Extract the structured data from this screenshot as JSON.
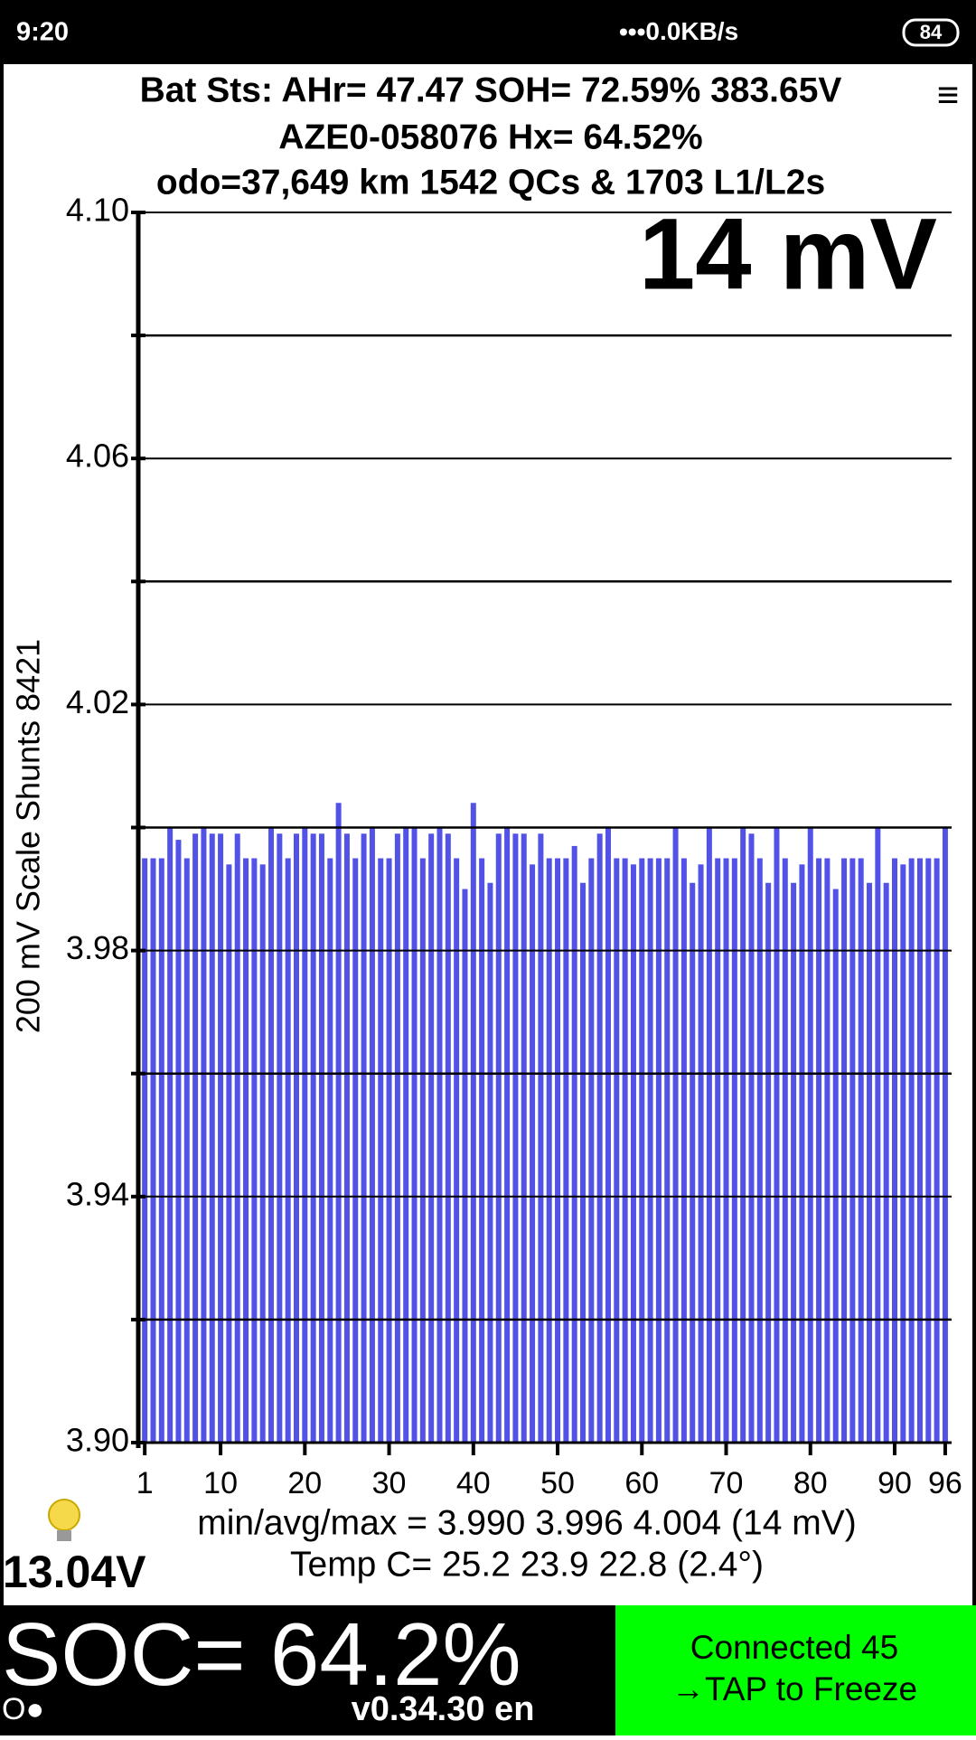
{
  "status_bar": {
    "time": "9:20",
    "network": "0.0KB/s",
    "battery": "84"
  },
  "header": {
    "line1": "Bat Sts: AHr= 47.47 SOH= 72.59% 383.65V",
    "line2": "AZE0-058076   Hx= 64.52%",
    "line3": "odo=37,649 km  1542 QCs & 1703 L1/L2s",
    "menu": "≡"
  },
  "chart_data": {
    "type": "bar",
    "annotation": "14 mV",
    "ylabel": "200 mV Scale   Shunts 8421",
    "color": "#5252e6",
    "x": [
      1,
      2,
      3,
      4,
      5,
      6,
      7,
      8,
      9,
      10,
      11,
      12,
      13,
      14,
      15,
      16,
      17,
      18,
      19,
      20,
      21,
      22,
      23,
      24,
      25,
      26,
      27,
      28,
      29,
      30,
      31,
      32,
      33,
      34,
      35,
      36,
      37,
      38,
      39,
      40,
      41,
      42,
      43,
      44,
      45,
      46,
      47,
      48,
      49,
      50,
      51,
      52,
      53,
      54,
      55,
      56,
      57,
      58,
      59,
      60,
      61,
      62,
      63,
      64,
      65,
      66,
      67,
      68,
      69,
      70,
      71,
      72,
      73,
      74,
      75,
      76,
      77,
      78,
      79,
      80,
      81,
      82,
      83,
      84,
      85,
      86,
      87,
      88,
      89,
      90,
      91,
      92,
      93,
      94,
      95,
      96
    ],
    "values": [
      3.995,
      3.995,
      3.995,
      4.0,
      3.998,
      3.995,
      3.999,
      4.0,
      3.999,
      3.999,
      3.994,
      3.999,
      3.995,
      3.995,
      3.994,
      4.0,
      3.999,
      3.995,
      3.999,
      4.0,
      3.999,
      3.999,
      3.995,
      4.004,
      3.999,
      3.995,
      3.999,
      4.0,
      3.995,
      3.995,
      3.999,
      4.0,
      4.0,
      3.995,
      3.999,
      4.0,
      3.999,
      3.995,
      3.99,
      4.004,
      3.995,
      3.991,
      3.999,
      4.0,
      3.999,
      3.999,
      3.994,
      3.999,
      3.995,
      3.995,
      3.995,
      3.997,
      3.991,
      3.995,
      3.999,
      4.0,
      3.995,
      3.995,
      3.994,
      3.995,
      3.995,
      3.995,
      3.995,
      4.0,
      3.995,
      3.991,
      3.994,
      4.0,
      3.995,
      3.995,
      3.995,
      4.0,
      3.999,
      3.995,
      3.991,
      4.0,
      3.995,
      3.991,
      3.994,
      4.0,
      3.995,
      3.995,
      3.99,
      3.995,
      3.995,
      3.995,
      3.991,
      4.0,
      3.991,
      3.995,
      3.994,
      3.995,
      3.995,
      3.995,
      3.995,
      4.0
    ],
    "xlim": [
      0.5,
      96.5
    ],
    "xticks": [
      1,
      10,
      20,
      30,
      40,
      50,
      60,
      70,
      80,
      90,
      96
    ],
    "ylim": [
      3.9,
      4.1
    ],
    "yticks": [
      {
        "value": 3.9,
        "label": "3.90"
      },
      {
        "value": 3.94,
        "label": "3.94"
      },
      {
        "value": 3.98,
        "label": "3.98"
      },
      {
        "value": 4.02,
        "label": "4.02"
      },
      {
        "value": 4.06,
        "label": "4.06"
      },
      {
        "value": 4.1,
        "label": "4.10"
      }
    ],
    "ygrid": [
      3.92,
      3.96,
      4.0,
      4.04,
      4.08
    ],
    "grid": true
  },
  "stats": {
    "minavgmax": "min/avg/max = 3.990 3.996 4.004  (14 mV)",
    "temp": "Temp C= 25.2  23.9  22.8  (2.4°)",
    "aux_voltage": "13.04V"
  },
  "footer": {
    "soc": "SOC= 64.2%",
    "status_icon": "O●",
    "version": "v0.34.30 en",
    "connected": "Connected 45",
    "tap": "→TAP to Freeze"
  }
}
